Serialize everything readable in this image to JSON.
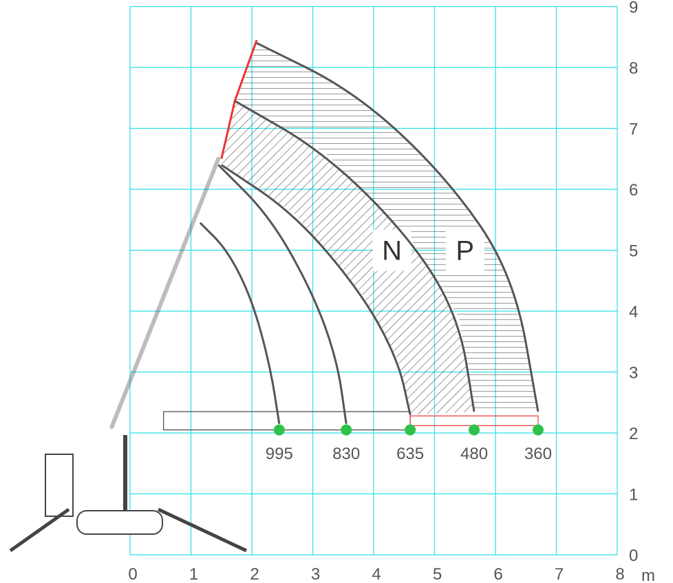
{
  "colors": {
    "grid": "#2de0e6",
    "curve": "#555555",
    "hatch": "#333333",
    "extension": "#ee3333",
    "point": "#2ec24a",
    "machine": "#444444",
    "text": "#555555"
  },
  "chart_data": {
    "type": "line",
    "x_unit": "m",
    "xlim": [
      0,
      8
    ],
    "ylim": [
      0,
      9
    ],
    "x_ticks": [
      "0",
      "1",
      "2",
      "3",
      "4",
      "5",
      "6",
      "7",
      "8"
    ],
    "y_ticks": [
      "0",
      "1",
      "2",
      "3",
      "4",
      "5",
      "6",
      "7",
      "8",
      "9"
    ],
    "grid": true,
    "series": [
      {
        "label": "995",
        "points": [
          [
            1.15,
            5.45
          ],
          [
            1.6,
            5.0
          ],
          [
            2.0,
            4.2
          ],
          [
            2.3,
            3.1
          ],
          [
            2.45,
            2.15
          ]
        ]
      },
      {
        "label": "830",
        "points": [
          [
            1.45,
            6.4
          ],
          [
            2.3,
            5.55
          ],
          [
            3.0,
            4.3
          ],
          [
            3.4,
            3.2
          ],
          [
            3.55,
            2.15
          ]
        ]
      },
      {
        "label": "635",
        "points": [
          [
            1.5,
            6.4
          ],
          [
            2.7,
            5.6
          ],
          [
            3.8,
            4.3
          ],
          [
            4.4,
            3.2
          ],
          [
            4.6,
            2.3
          ]
        ]
      },
      {
        "label": "480",
        "points": [
          [
            1.72,
            7.45
          ],
          [
            3.2,
            6.6
          ],
          [
            4.6,
            5.2
          ],
          [
            5.4,
            3.9
          ],
          [
            5.65,
            2.35
          ]
        ]
      },
      {
        "label": "360",
        "points": [
          [
            2.08,
            8.4
          ],
          [
            3.7,
            7.6
          ],
          [
            5.2,
            6.2
          ],
          [
            6.3,
            4.6
          ],
          [
            6.7,
            2.35
          ]
        ]
      }
    ],
    "zones": [
      {
        "label": "N",
        "x": 4.3,
        "y": 5.0,
        "pattern": "diagonal"
      },
      {
        "label": "P",
        "x": 5.5,
        "y": 5.0,
        "pattern": "horizontal"
      }
    ]
  }
}
